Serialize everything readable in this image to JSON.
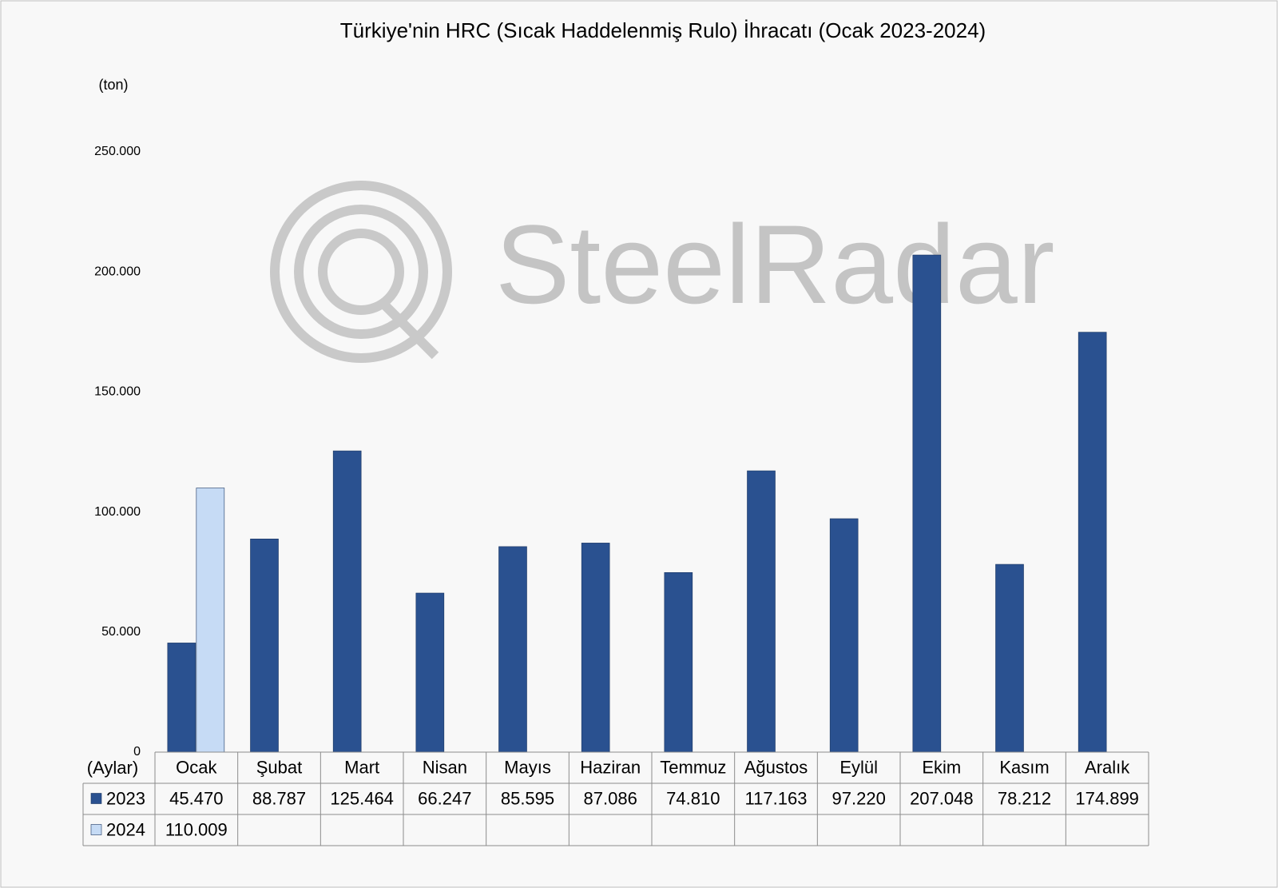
{
  "chart_data": {
    "type": "bar",
    "title": "Türkiye'nin HRC (Sıcak Haddelenmiş Rulo) İhracatı (Ocak 2023-2024)",
    "y_label": "(ton)",
    "x_label": "(Aylar)",
    "watermark": "SteelRadar",
    "categories": [
      "Ocak",
      "Şubat",
      "Mart",
      "Nisan",
      "Mayıs",
      "Haziran",
      "Temmuz",
      "Ağustos",
      "Eylül",
      "Ekim",
      "Kasım",
      "Aralık"
    ],
    "series": [
      {
        "name": "2023",
        "color": "#2a5190",
        "values": [
          45470,
          88787,
          125464,
          66247,
          85595,
          87086,
          74810,
          117163,
          97220,
          207048,
          78212,
          174899
        ],
        "value_labels": [
          "45.470",
          "88.787",
          "125.464",
          "66.247",
          "85.595",
          "87.086",
          "74.810",
          "117.163",
          "97.220",
          "207.048",
          "78.212",
          "174.899"
        ]
      },
      {
        "name": "2024",
        "color": "#c6dbf5",
        "values": [
          110009,
          null,
          null,
          null,
          null,
          null,
          null,
          null,
          null,
          null,
          null,
          null
        ],
        "value_labels": [
          "110.009",
          null,
          null,
          null,
          null,
          null,
          null,
          null,
          null,
          null,
          null,
          null
        ]
      }
    ],
    "ylim": [
      0,
      250000
    ],
    "yticks": [
      0,
      {
        "value": 50000,
        "label": "50.000"
      },
      {
        "value": 100000,
        "label": "100.000"
      },
      {
        "value": 150000,
        "label": "150.000"
      },
      {
        "value": 200000,
        "label": "200.000"
      },
      {
        "value": 250000,
        "label": "250.000"
      }
    ],
    "grid": false,
    "data_table": true
  }
}
